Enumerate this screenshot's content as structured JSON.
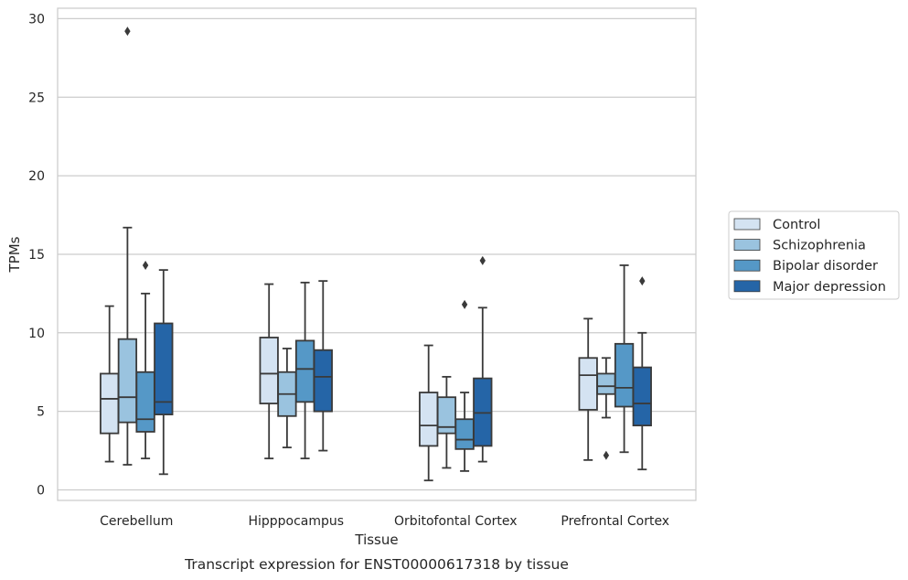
{
  "chart_data": {
    "type": "box",
    "title": "",
    "caption": "Transcript expression for ENST00000617318 by tissue",
    "xlabel": "Tissue",
    "ylabel": "TPMs",
    "ylim": [
      -0.7,
      30.6
    ],
    "yticks": [
      0,
      5,
      10,
      15,
      20,
      25,
      30
    ],
    "grid": "horizontal",
    "legend_position": "right",
    "categories": [
      "Cerebellum",
      "Hipppocampus",
      "Orbitofontal Cortex",
      "Prefrontal Cortex"
    ],
    "series": [
      {
        "name": "Control",
        "color": "#d4e3f2",
        "boxes": [
          {
            "whislo": 1.8,
            "q1": 3.6,
            "med": 5.8,
            "q3": 7.4,
            "whishi": 11.7,
            "fliers": []
          },
          {
            "whislo": 2.0,
            "q1": 5.5,
            "med": 7.4,
            "q3": 9.7,
            "whishi": 13.1,
            "fliers": []
          },
          {
            "whislo": 0.6,
            "q1": 2.8,
            "med": 4.1,
            "q3": 6.2,
            "whishi": 9.2,
            "fliers": []
          },
          {
            "whislo": 1.9,
            "q1": 5.1,
            "med": 7.3,
            "q3": 8.4,
            "whishi": 10.9,
            "fliers": []
          }
        ]
      },
      {
        "name": "Schizophrenia",
        "color": "#9ac3df",
        "boxes": [
          {
            "whislo": 1.6,
            "q1": 4.3,
            "med": 5.9,
            "q3": 9.6,
            "whishi": 16.7,
            "fliers": [
              29.2
            ]
          },
          {
            "whislo": 2.7,
            "q1": 4.7,
            "med": 6.1,
            "q3": 7.5,
            "whishi": 9.0,
            "fliers": []
          },
          {
            "whislo": 1.4,
            "q1": 3.6,
            "med": 4.0,
            "q3": 5.9,
            "whishi": 7.2,
            "fliers": []
          },
          {
            "whislo": 4.6,
            "q1": 6.1,
            "med": 6.6,
            "q3": 7.4,
            "whishi": 8.4,
            "fliers": [
              2.2
            ]
          }
        ]
      },
      {
        "name": "Bipolar disorder",
        "color": "#5598c7",
        "boxes": [
          {
            "whislo": 2.0,
            "q1": 3.7,
            "med": 4.5,
            "q3": 7.5,
            "whishi": 12.5,
            "fliers": [
              14.3
            ]
          },
          {
            "whislo": 2.0,
            "q1": 5.6,
            "med": 7.7,
            "q3": 9.5,
            "whishi": 13.2,
            "fliers": []
          },
          {
            "whislo": 1.2,
            "q1": 2.6,
            "med": 3.2,
            "q3": 4.5,
            "whishi": 6.2,
            "fliers": [
              11.8
            ]
          },
          {
            "whislo": 2.4,
            "q1": 5.3,
            "med": 6.5,
            "q3": 9.3,
            "whishi": 14.3,
            "fliers": []
          }
        ]
      },
      {
        "name": "Major depression",
        "color": "#2565a7",
        "boxes": [
          {
            "whislo": 1.0,
            "q1": 4.8,
            "med": 5.6,
            "q3": 10.6,
            "whishi": 14.0,
            "fliers": []
          },
          {
            "whislo": 2.5,
            "q1": 5.0,
            "med": 7.2,
            "q3": 8.9,
            "whishi": 13.3,
            "fliers": []
          },
          {
            "whislo": 1.8,
            "q1": 2.8,
            "med": 4.9,
            "q3": 7.1,
            "whishi": 11.6,
            "fliers": [
              14.6
            ]
          },
          {
            "whislo": 1.3,
            "q1": 4.1,
            "med": 5.5,
            "q3": 7.8,
            "whishi": 10.0,
            "fliers": [
              13.3
            ]
          }
        ]
      }
    ]
  }
}
